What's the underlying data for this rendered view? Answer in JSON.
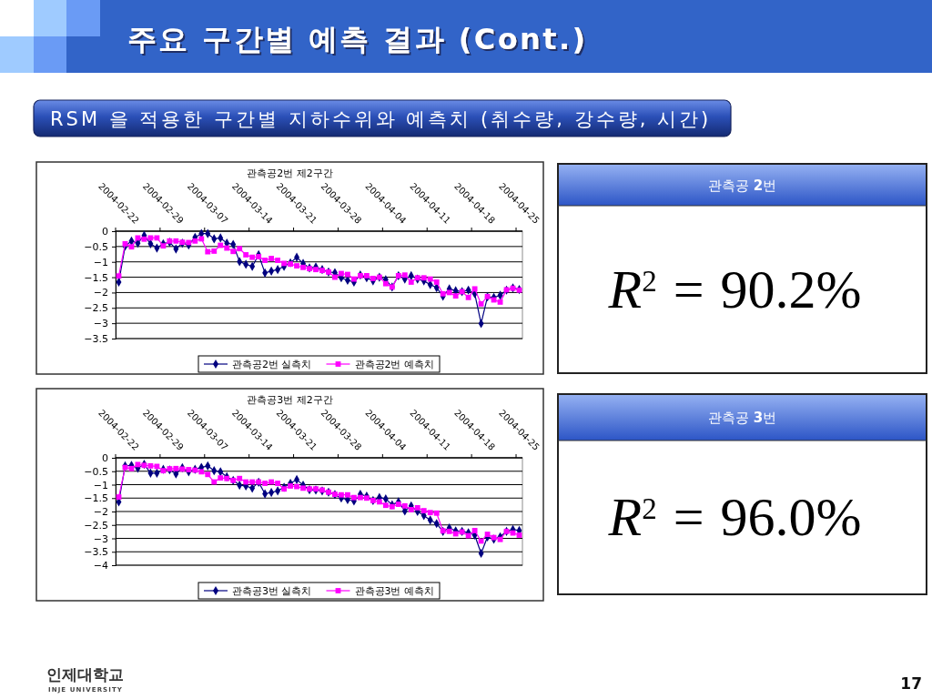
{
  "chart_data": [
    {
      "type": "other",
      "title": "주요 구간별 예측 결과 (Cont.)",
      "subtitle": "RSM 을 적용한 구간별 지하수위와 예측치 (취수량, 강수량, 시간)",
      "annotations": [
        "17",
        "인제대학교",
        "INJE UNIVERSITY"
      ]
    },
    {
      "type": "line",
      "title": "관측공2번 제2구간",
      "categories": [
        "2004-02-22",
        null,
        null,
        null,
        null,
        null,
        null,
        "2004-02-29",
        null,
        null,
        null,
        null,
        null,
        null,
        "2004-03-07",
        null,
        null,
        null,
        null,
        null,
        null,
        "2004-03-14",
        null,
        null,
        null,
        null,
        null,
        null,
        "2004-03-21",
        null,
        null,
        null,
        null,
        null,
        null,
        "2004-03-28",
        null,
        null,
        null,
        null,
        null,
        null,
        "2004-04-04",
        null,
        null,
        null,
        null,
        null,
        null,
        "2004-04-11",
        null,
        null,
        null,
        null,
        null,
        null,
        "2004-04-18",
        null,
        null,
        null,
        null,
        null,
        null,
        "2004-04-25"
      ],
      "series": [
        {
          "name": "관측공2번 실측치",
          "color": "#000080",
          "marker": "diamond",
          "values": [
            -1.66,
            -0.49,
            -0.32,
            -0.39,
            -0.14,
            -0.41,
            -0.55,
            -0.41,
            -0.36,
            -0.58,
            -0.39,
            -0.45,
            -0.2,
            -0.08,
            -0.08,
            -0.25,
            -0.22,
            -0.39,
            -0.43,
            -0.99,
            -1.08,
            -1.15,
            -0.77,
            -1.36,
            -1.3,
            -1.25,
            -1.15,
            -1.03,
            -0.85,
            -1.05,
            -1.2,
            -1.17,
            -1.25,
            -1.33,
            -1.35,
            -1.52,
            -1.6,
            -1.66,
            -1.43,
            -1.52,
            -1.62,
            -1.5,
            -1.58,
            -1.82,
            -1.45,
            -1.56,
            -1.45,
            -1.56,
            -1.62,
            -1.74,
            -1.84,
            -2.12,
            -1.88,
            -1.94,
            -1.97,
            -1.92,
            -2.04,
            -3.01,
            -2.14,
            -2.16,
            -2.09,
            -1.92,
            -1.85,
            -1.9
          ]
        },
        {
          "name": "관측공2번 예측치",
          "color": "#ff00ff",
          "marker": "square",
          "values": [
            -1.46,
            -0.41,
            -0.51,
            -0.22,
            -0.26,
            -0.22,
            -0.22,
            -0.48,
            -0.32,
            -0.32,
            -0.36,
            -0.37,
            -0.32,
            -0.25,
            -0.67,
            -0.65,
            -0.46,
            -0.55,
            -0.66,
            -0.57,
            -0.77,
            -0.85,
            -0.83,
            -0.95,
            -0.89,
            -0.95,
            -1.05,
            -1.07,
            -1.13,
            -1.18,
            -1.22,
            -1.25,
            -1.28,
            -1.33,
            -1.5,
            -1.38,
            -1.41,
            -1.56,
            -1.45,
            -1.45,
            -1.54,
            -1.5,
            -1.71,
            -1.82,
            -1.45,
            -1.43,
            -1.66,
            -1.52,
            -1.52,
            -1.56,
            -1.66,
            -2.04,
            -2.0,
            -2.11,
            -1.97,
            -2.16,
            -1.88,
            -2.37,
            -2.13,
            -2.24,
            -2.31,
            -1.91,
            -1.86,
            -1.92
          ]
        }
      ],
      "ylim": [
        -3.5,
        0
      ],
      "yticks": [
        0,
        -0.5,
        -1,
        -1.5,
        -2,
        -2.5,
        -3,
        -3.5
      ],
      "grid": "y",
      "legend": "bottom"
    },
    {
      "type": "other",
      "title": "관측공 2번",
      "annotations": [
        "R$^{2}$ = 90.2%"
      ]
    },
    {
      "type": "line",
      "title": "관측공3번 제2구간",
      "categories": [
        "2004-02-22",
        null,
        null,
        null,
        null,
        null,
        null,
        "2004-02-29",
        null,
        null,
        null,
        null,
        null,
        null,
        "2004-03-07",
        null,
        null,
        null,
        null,
        null,
        null,
        "2004-03-14",
        null,
        null,
        null,
        null,
        null,
        null,
        "2004-03-21",
        null,
        null,
        null,
        null,
        null,
        null,
        "2004-03-28",
        null,
        null,
        null,
        null,
        null,
        null,
        "2004-04-04",
        null,
        null,
        null,
        null,
        null,
        null,
        "2004-04-11",
        null,
        null,
        null,
        null,
        null,
        null,
        "2004-04-18",
        null,
        null,
        null,
        null,
        null,
        null,
        "2004-04-25"
      ],
      "series": [
        {
          "name": "관측공3번 실측치",
          "color": "#000080",
          "marker": "diamond",
          "values": [
            -1.64,
            -0.3,
            -0.28,
            -0.39,
            -0.24,
            -0.57,
            -0.57,
            -0.43,
            -0.45,
            -0.6,
            -0.37,
            -0.52,
            -0.43,
            -0.36,
            -0.3,
            -0.48,
            -0.52,
            -0.71,
            -0.84,
            -1.02,
            -1.05,
            -1.13,
            -0.91,
            -1.34,
            -1.29,
            -1.23,
            -1.1,
            -0.95,
            -0.81,
            -1.02,
            -1.19,
            -1.2,
            -1.23,
            -1.28,
            -1.37,
            -1.5,
            -1.56,
            -1.61,
            -1.36,
            -1.43,
            -1.59,
            -1.48,
            -1.53,
            -1.75,
            -1.64,
            -1.98,
            -1.79,
            -2.0,
            -2.15,
            -2.32,
            -2.45,
            -2.74,
            -2.61,
            -2.72,
            -2.74,
            -2.79,
            -2.88,
            -3.56,
            -2.95,
            -3.03,
            -2.94,
            -2.74,
            -2.67,
            -2.71
          ]
        },
        {
          "name": "관측공3번 예측치",
          "color": "#ff00ff",
          "marker": "square",
          "values": [
            -1.46,
            -0.36,
            -0.4,
            -0.25,
            -0.28,
            -0.3,
            -0.32,
            -0.48,
            -0.41,
            -0.4,
            -0.42,
            -0.44,
            -0.46,
            -0.52,
            -0.62,
            -0.9,
            -0.75,
            -0.77,
            -0.84,
            -0.77,
            -0.9,
            -0.9,
            -0.9,
            -0.95,
            -0.9,
            -0.95,
            -1.16,
            -1.05,
            -1.07,
            -1.13,
            -1.16,
            -1.16,
            -1.2,
            -1.28,
            -1.36,
            -1.38,
            -1.38,
            -1.48,
            -1.48,
            -1.5,
            -1.59,
            -1.64,
            -1.77,
            -1.82,
            -1.73,
            -1.79,
            -1.93,
            -1.86,
            -1.97,
            -2.04,
            -2.06,
            -2.72,
            -2.74,
            -2.83,
            -2.76,
            -2.9,
            -2.71,
            -3.1,
            -2.85,
            -2.97,
            -3.04,
            -2.74,
            -2.8,
            -2.88
          ]
        }
      ],
      "ylim": [
        -4,
        0
      ],
      "yticks": [
        0,
        -0.5,
        -1,
        -1.5,
        -2,
        -2.5,
        -3,
        -3.5,
        -4
      ],
      "grid": "y",
      "legend": "bottom"
    },
    {
      "type": "other",
      "title": "관측공 3번",
      "annotations": [
        "R$^{2}$ = 96.0%"
      ]
    }
  ]
}
